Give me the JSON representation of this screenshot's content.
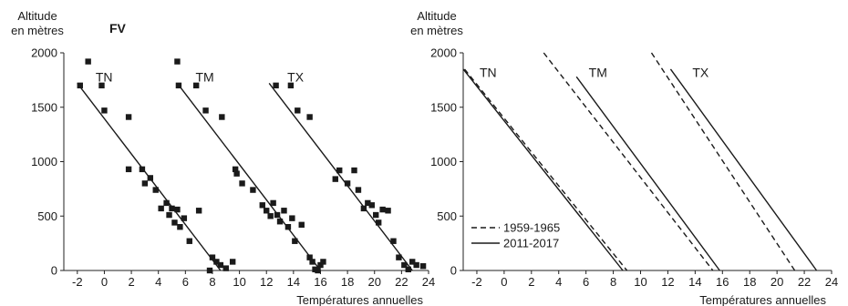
{
  "chart_data": [
    {
      "type": "scatter",
      "title": "FV",
      "ylabel_lines": [
        "Altitude",
        "en mètres"
      ],
      "xlabel": "Températures annuelles",
      "xlim": [
        -3,
        24
      ],
      "ylim": [
        0,
        2000
      ],
      "xticks": [
        -2,
        0,
        2,
        4,
        6,
        8,
        10,
        12,
        14,
        16,
        18,
        20,
        22,
        24
      ],
      "yticks": [
        0,
        500,
        1000,
        1500,
        2000
      ],
      "series": [
        {
          "name": "TN",
          "fit": [
            [
              -2.0,
              1720
            ],
            [
              8.6,
              0
            ]
          ],
          "points": [
            [
              -1.8,
              1700
            ],
            [
              -1.2,
              1920
            ],
            [
              -0.2,
              1700
            ],
            [
              0.0,
              1470
            ],
            [
              1.8,
              1410
            ],
            [
              1.8,
              930
            ],
            [
              2.8,
              930
            ],
            [
              3.0,
              800
            ],
            [
              3.4,
              850
            ],
            [
              3.8,
              740
            ],
            [
              4.2,
              570
            ],
            [
              4.6,
              620
            ],
            [
              4.8,
              510
            ],
            [
              5.0,
              570
            ],
            [
              5.2,
              440
            ],
            [
              5.4,
              560
            ],
            [
              5.6,
              400
            ],
            [
              5.9,
              480
            ],
            [
              6.3,
              270
            ],
            [
              7.0,
              550
            ],
            [
              7.8,
              0
            ],
            [
              8.0,
              120
            ],
            [
              8.3,
              80
            ],
            [
              8.6,
              50
            ],
            [
              9.0,
              20
            ],
            [
              9.5,
              80
            ]
          ]
        },
        {
          "name": "TM",
          "fit": [
            [
              5.4,
              1720
            ],
            [
              16.0,
              0
            ]
          ],
          "points": [
            [
              5.4,
              1920
            ],
            [
              5.5,
              1700
            ],
            [
              6.8,
              1700
            ],
            [
              7.5,
              1470
            ],
            [
              8.7,
              1410
            ],
            [
              9.7,
              930
            ],
            [
              9.8,
              890
            ],
            [
              10.2,
              800
            ],
            [
              11.0,
              740
            ],
            [
              11.7,
              600
            ],
            [
              12.0,
              550
            ],
            [
              12.3,
              500
            ],
            [
              12.5,
              620
            ],
            [
              12.8,
              510
            ],
            [
              13.0,
              450
            ],
            [
              13.3,
              550
            ],
            [
              13.6,
              400
            ],
            [
              13.9,
              480
            ],
            [
              14.1,
              270
            ],
            [
              14.6,
              420
            ],
            [
              15.2,
              120
            ],
            [
              15.4,
              80
            ],
            [
              15.6,
              10
            ],
            [
              15.8,
              0
            ],
            [
              16.0,
              50
            ],
            [
              16.2,
              80
            ]
          ]
        },
        {
          "name": "TX",
          "fit": [
            [
              12.2,
              1720
            ],
            [
              22.8,
              0
            ]
          ],
          "points": [
            [
              12.7,
              1700
            ],
            [
              13.8,
              1700
            ],
            [
              14.3,
              1470
            ],
            [
              15.2,
              1410
            ],
            [
              17.1,
              840
            ],
            [
              17.4,
              920
            ],
            [
              18.0,
              800
            ],
            [
              18.5,
              920
            ],
            [
              18.8,
              740
            ],
            [
              19.2,
              570
            ],
            [
              19.5,
              620
            ],
            [
              19.8,
              600
            ],
            [
              20.1,
              510
            ],
            [
              20.3,
              440
            ],
            [
              20.6,
              560
            ],
            [
              21.0,
              550
            ],
            [
              21.4,
              270
            ],
            [
              21.8,
              120
            ],
            [
              22.2,
              50
            ],
            [
              22.5,
              10
            ],
            [
              22.8,
              80
            ],
            [
              23.1,
              50
            ],
            [
              23.6,
              40
            ]
          ]
        }
      ]
    },
    {
      "type": "line",
      "ylabel_lines": [
        "Altitude",
        "en mètres"
      ],
      "xlabel": "Températures annuelles",
      "xlim": [
        -3,
        24
      ],
      "ylim": [
        0,
        2000
      ],
      "xticks": [
        -2,
        0,
        2,
        4,
        6,
        8,
        10,
        12,
        14,
        16,
        18,
        20,
        22,
        24
      ],
      "yticks": [
        0,
        500,
        1000,
        1500,
        2000
      ],
      "legend": {
        "position": "bottom-left",
        "entries": [
          {
            "label": "1959-1965",
            "style": "dashed"
          },
          {
            "label": "2011-2017",
            "style": "solid"
          }
        ]
      },
      "panel_labels": [
        {
          "text": "TN",
          "x": -1.8,
          "y": 1780
        },
        {
          "text": "TM",
          "x": 6.2,
          "y": 1780
        },
        {
          "text": "TX",
          "x": 13.8,
          "y": 1780
        }
      ],
      "series": [
        {
          "name": "TN",
          "period": "1959-1965",
          "style": "dashed",
          "points": [
            [
              -2.9,
              1850
            ],
            [
              9.0,
              0
            ]
          ]
        },
        {
          "name": "TN",
          "period": "2011-2017",
          "style": "solid",
          "points": [
            [
              -3.0,
              1850
            ],
            [
              8.7,
              0
            ]
          ]
        },
        {
          "name": "TM",
          "period": "1959-1965",
          "style": "dashed",
          "points": [
            [
              2.9,
              2000
            ],
            [
              15.3,
              0
            ]
          ]
        },
        {
          "name": "TM",
          "period": "2011-2017",
          "style": "solid",
          "points": [
            [
              5.3,
              1780
            ],
            [
              15.8,
              0
            ]
          ]
        },
        {
          "name": "TX",
          "period": "1959-1965",
          "style": "dashed",
          "points": [
            [
              10.8,
              2000
            ],
            [
              21.3,
              0
            ]
          ]
        },
        {
          "name": "TX",
          "period": "2011-2017",
          "style": "solid",
          "points": [
            [
              12.2,
              1850
            ],
            [
              22.9,
              0
            ]
          ]
        }
      ]
    }
  ]
}
